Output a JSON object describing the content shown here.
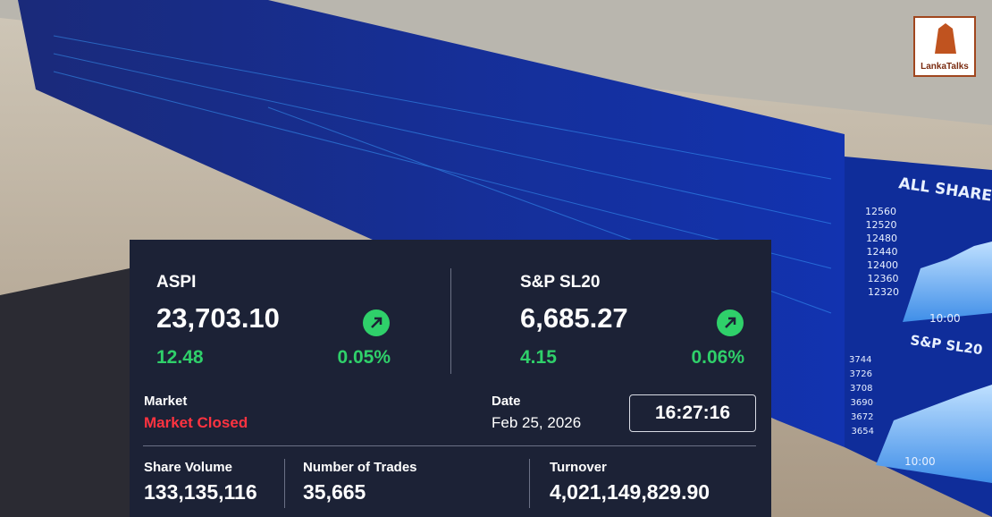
{
  "logo": "LankaTalks",
  "background": {
    "screen_1": {
      "title": "ALL SHARE",
      "axis": [
        "12560",
        "12520",
        "12480",
        "12440",
        "12400",
        "12360",
        "12320"
      ],
      "time": "10:00"
    },
    "screen_2": {
      "title": "S&P SL20",
      "axis": [
        "3744",
        "3726",
        "3708",
        "3690",
        "3672",
        "3654"
      ],
      "time": "10:00"
    }
  },
  "indices": [
    {
      "name": "ASPI",
      "value": "23,703.10",
      "change": "12.48",
      "change_percent": "0.05%"
    },
    {
      "name": "S&P SL20",
      "value": "6,685.27",
      "change": "4.15",
      "change_percent": "0.06%"
    }
  ],
  "market": {
    "label": "Market",
    "status": "Market Closed"
  },
  "date": {
    "label": "Date",
    "value": "Feb 25, 2026"
  },
  "time": "16:27:16",
  "stats": [
    {
      "label": "Share Volume",
      "value": "133,135,116"
    },
    {
      "label": "Number of Trades",
      "value": "35,665"
    },
    {
      "label": "Turnover",
      "value": "4,021,149,829.90"
    }
  ]
}
